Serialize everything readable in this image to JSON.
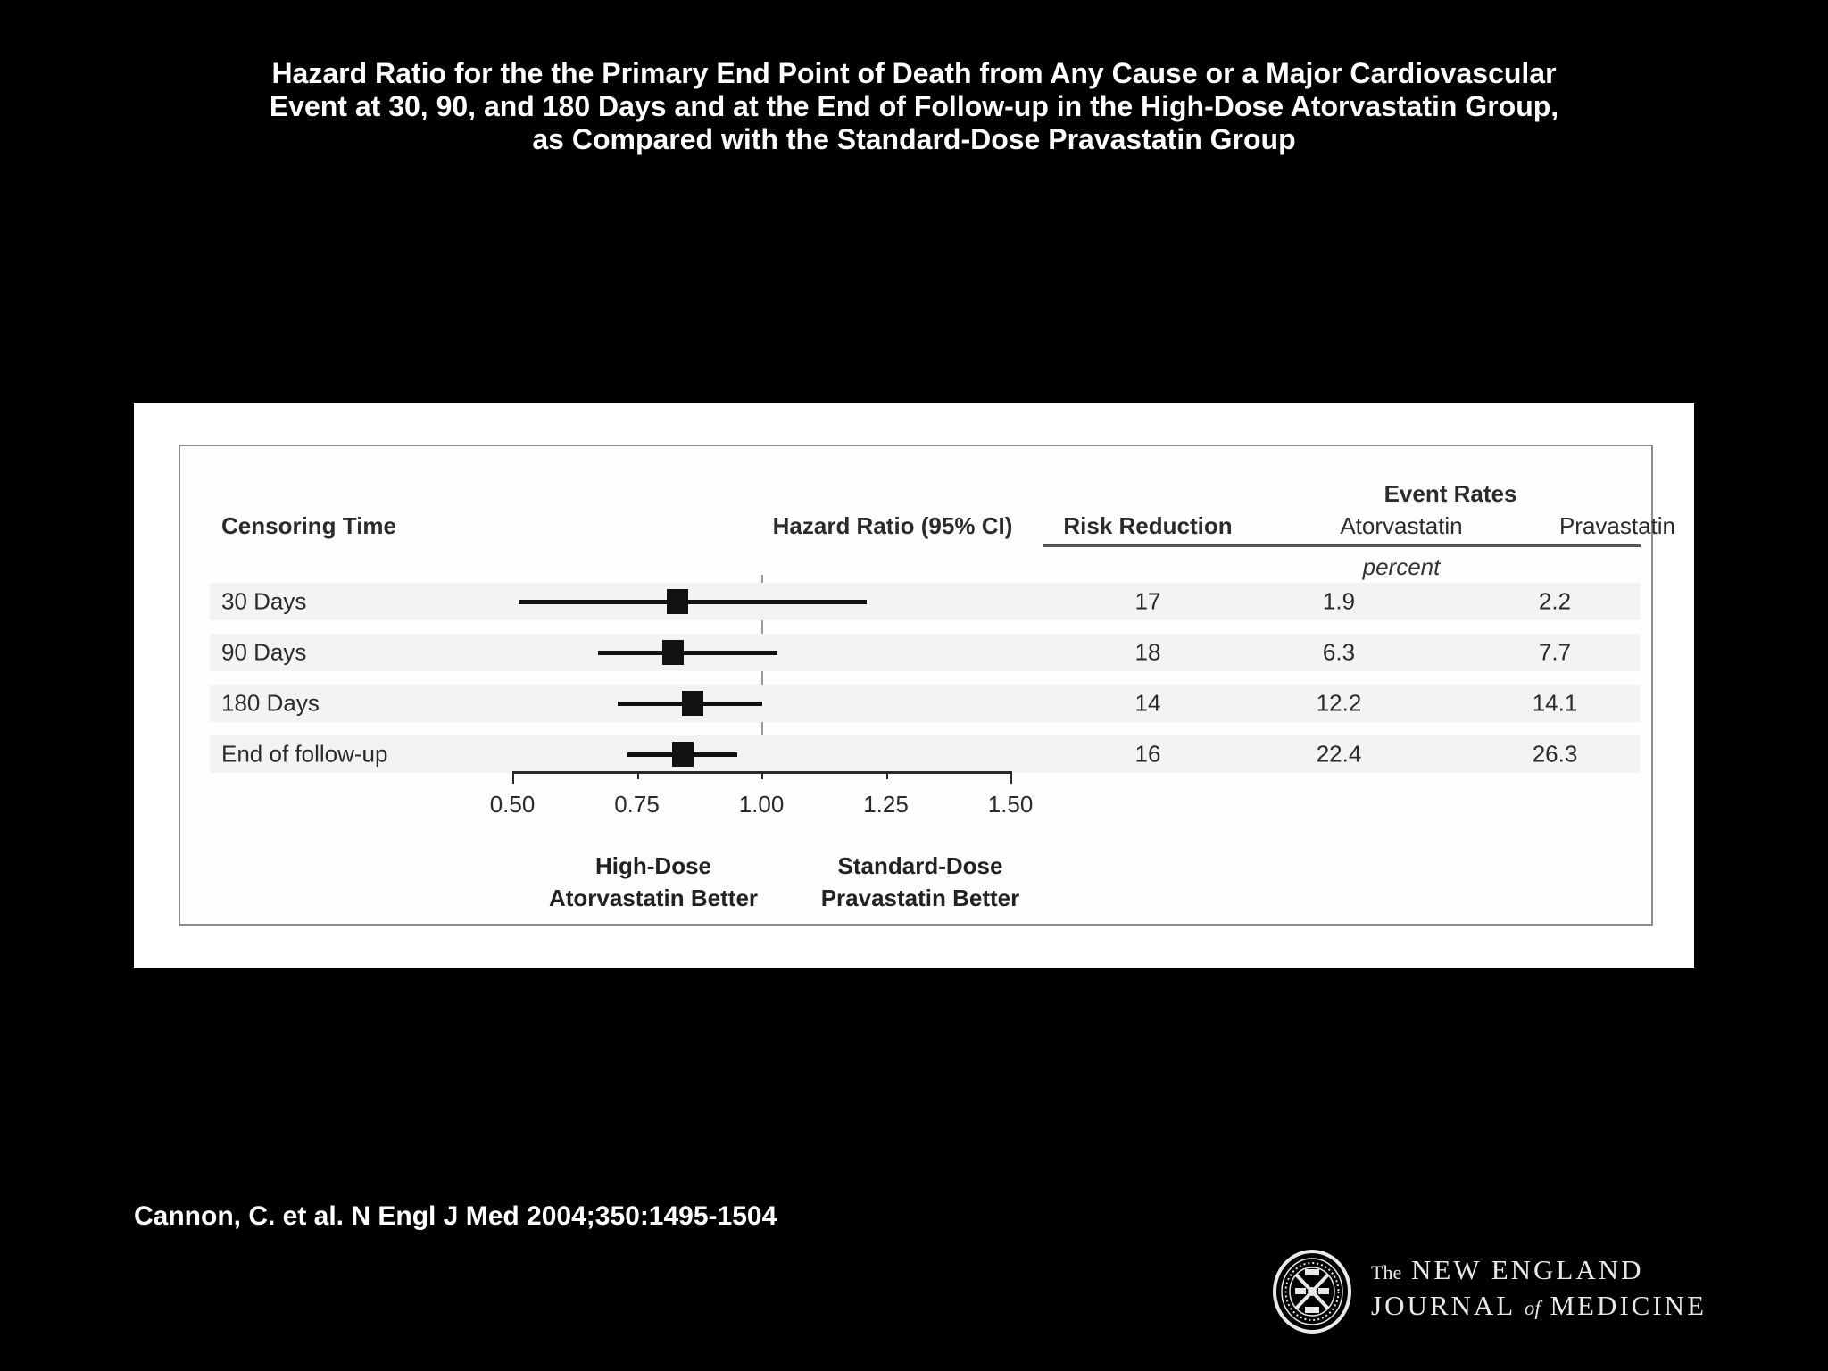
{
  "title": {
    "lines": [
      "Hazard Ratio for the the Primary End Point of Death from Any Cause or a Major Cardiovascular",
      "Event at 30, 90, and 180 Days and at the End of Follow-up in the High-Dose Atorvastatin Group,",
      "as Compared with the Standard-Dose Pravastatin Group"
    ]
  },
  "figure": {
    "headers": {
      "censoring_time": "Censoring Time",
      "hazard_ratio": "Hazard Ratio (95% CI)",
      "risk_reduction": "Risk Reduction",
      "event_rates": "Event Rates",
      "atorvastatin": "Atorvastatin",
      "pravastatin": "Pravastatin",
      "unit": "percent"
    }
  },
  "chart_data": {
    "type": "scatter",
    "variant": "forest-plot",
    "title": "Hazard Ratio (95% CI)",
    "xlim": [
      0.5,
      1.5
    ],
    "reference_line": 1.0,
    "grid": false,
    "ticks": [
      {
        "label": "0.50",
        "value": 0.5
      },
      {
        "label": "0.75",
        "value": 0.75
      },
      {
        "label": "1.00",
        "value": 1.0
      },
      {
        "label": "1.25",
        "value": 1.25
      },
      {
        "label": "1.50",
        "value": 1.5
      }
    ],
    "rows": [
      {
        "label": "30 Days",
        "hr": 0.83,
        "ci_low": 0.51,
        "ci_high": 1.21,
        "risk_reduction": "17",
        "atorvastatin": "1.9",
        "pravastatin": "2.2"
      },
      {
        "label": "90 Days",
        "hr": 0.82,
        "ci_low": 0.67,
        "ci_high": 1.03,
        "risk_reduction": "18",
        "atorvastatin": "6.3",
        "pravastatin": "7.7"
      },
      {
        "label": "180 Days",
        "hr": 0.86,
        "ci_low": 0.71,
        "ci_high": 1.0,
        "risk_reduction": "14",
        "atorvastatin": "12.2",
        "pravastatin": "14.1"
      },
      {
        "label": "End of follow-up",
        "hr": 0.84,
        "ci_low": 0.73,
        "ci_high": 0.95,
        "risk_reduction": "16",
        "atorvastatin": "22.4",
        "pravastatin": "26.3"
      }
    ],
    "annotations": {
      "left_line1": "High-Dose",
      "left_line2": "Atorvastatin Better",
      "right_line1": "Standard-Dose",
      "right_line2": "Pravastatin Better"
    },
    "marker_color": "#111111",
    "stripe_color": "#f3f3f3"
  },
  "citation": "Cannon, C. et al. N Engl J Med 2004;350:1495-1504",
  "logo": {
    "the": "The",
    "line1": "NEW ENGLAND",
    "journal": "JOURNAL",
    "of": "of",
    "medicine": "MEDICINE",
    "seal": "nejm-seal"
  }
}
